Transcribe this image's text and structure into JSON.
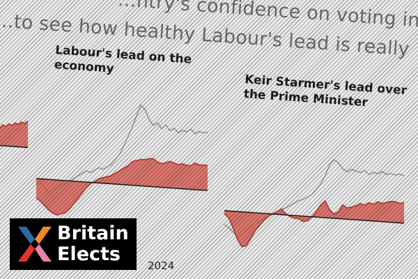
{
  "page": {
    "headline_line1": "…ntry's confidence on voting inte…",
    "headline_line2": "…to see how healthy Labour's lead is really",
    "year_label": "2024"
  },
  "logo": {
    "word1": "Britain",
    "word2": "Elects",
    "colors": {
      "blue": "#2c6aa8",
      "orange": "#f08a24",
      "red": "#e0352b",
      "pink": "#e583a6"
    }
  },
  "colors": {
    "fill": "#d95a4e",
    "edge": "#b9362c",
    "line": "#8c8c8c",
    "baseline": "#111111"
  },
  "chart_data": [
    {
      "type": "area",
      "title": "",
      "y_zero_line": true,
      "series": [
        {
          "values": [
            3,
            14,
            12,
            15,
            14,
            16,
            15,
            17,
            16,
            18,
            17,
            19
          ]
        }
      ]
    },
    {
      "type": "area",
      "title": "Labour's lead on the economy",
      "y_zero_line": true,
      "series": [
        {
          "values": [
            -14,
            -16,
            -19,
            -22,
            -24,
            -25,
            -24,
            -23,
            -20,
            -16,
            -12,
            -8,
            -4,
            -1,
            1,
            3,
            4,
            5,
            6,
            8,
            10,
            12,
            14,
            17,
            18,
            19,
            19,
            20,
            20,
            18,
            17,
            18,
            19,
            18,
            17,
            18,
            17,
            17,
            19,
            18,
            18,
            18
          ]
        },
        {
          "values": [
            -4,
            -2,
            -6,
            -10,
            -7,
            -5,
            -3,
            -2,
            0,
            2,
            4,
            6,
            8,
            7,
            9,
            11,
            10,
            12,
            14,
            18,
            22,
            28,
            35,
            42,
            50,
            58,
            55,
            48,
            44,
            46,
            42,
            45,
            41,
            43,
            40,
            42,
            41,
            43,
            40,
            42,
            41,
            42
          ]
        }
      ]
    },
    {
      "type": "area",
      "title": "Keir Starmer's lead over the Prime Minister",
      "y_zero_line": true,
      "series": [
        {
          "values": [
            -2,
            -5,
            -12,
            -20,
            -25,
            -24,
            -19,
            -13,
            -9,
            -5,
            -2,
            0,
            2,
            4,
            1,
            -1,
            -2,
            -2,
            -4,
            -3,
            0,
            4,
            9,
            12,
            6,
            3,
            5,
            10,
            8,
            9,
            10,
            12,
            11,
            13,
            12,
            14,
            13,
            14,
            15,
            15,
            14,
            15
          ]
        },
        {
          "values": [
            -10,
            -12,
            -15,
            -18,
            -16,
            -13,
            -10,
            -8,
            -6,
            -4,
            -2,
            0,
            2,
            4,
            5,
            7,
            9,
            11,
            12,
            14,
            16,
            20,
            24,
            30,
            38,
            42,
            40,
            36,
            34,
            36,
            35,
            34,
            36,
            33,
            35,
            34,
            36,
            34,
            35,
            34,
            35,
            34
          ]
        }
      ]
    }
  ]
}
